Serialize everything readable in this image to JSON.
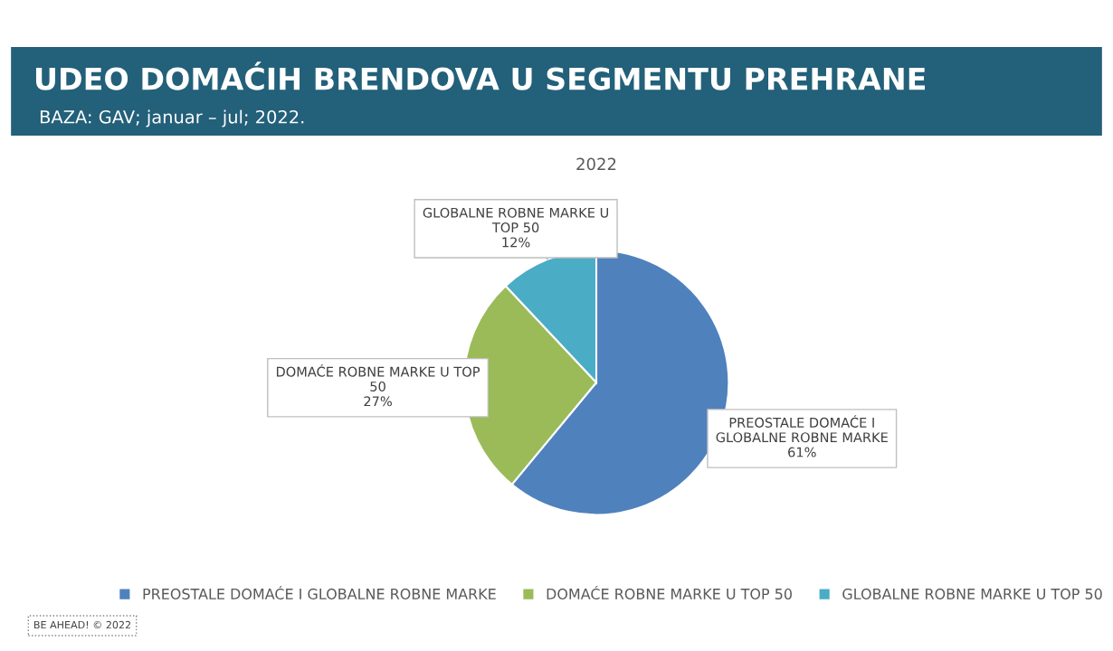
{
  "chart_data": {
    "type": "pie",
    "title": "UDEO DOMAĆIH BRENDOVA U SEGMENTU PREHRANE",
    "subtitle": "BAZA: GAV; januar – jul; 2022.",
    "annotations": [
      "2022",
      "BE AHEAD! © 2022"
    ],
    "categories": [
      "PREOSTALE DOMAĆE I GLOBALNE ROBNE MARKE",
      "DOMAĆE ROBNE MARKE U TOP 50",
      "GLOBALNE ROBNE MARKE U TOP 50"
    ],
    "values": [
      61,
      27,
      12
    ],
    "colors": [
      "#4f81bd",
      "#9bbb59",
      "#4bacc6"
    ],
    "value_labels": [
      "61%",
      "27%",
      "12%"
    ],
    "legend": "bottom"
  }
}
